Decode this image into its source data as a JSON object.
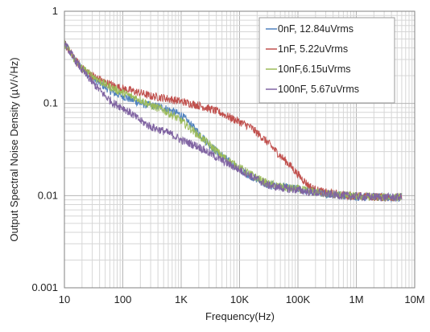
{
  "chart_data": {
    "type": "line",
    "xlabel": "Frequency(Hz)",
    "ylabel": "Output Spectral Noise Density (µV/√Hz)",
    "x_scale": "log",
    "y_scale": "log",
    "xlim": [
      10,
      10000000
    ],
    "ylim": [
      0.001,
      1
    ],
    "grid": true,
    "legend_position": "top-right",
    "x_ticks": [
      {
        "value": 10,
        "label": "10"
      },
      {
        "value": 100,
        "label": "100"
      },
      {
        "value": 1000,
        "label": "1K"
      },
      {
        "value": 10000,
        "label": "10K"
      },
      {
        "value": 100000,
        "label": "100K"
      },
      {
        "value": 1000000,
        "label": "1M"
      },
      {
        "value": 10000000,
        "label": "10M"
      }
    ],
    "y_ticks": [
      {
        "value": 1,
        "label": "1"
      },
      {
        "value": 0.1,
        "label": "0.1"
      },
      {
        "value": 0.01,
        "label": "0.01"
      },
      {
        "value": 0.001,
        "label": "0.001"
      }
    ],
    "series": [
      {
        "name": "0nF, 12.84uVrms",
        "color": "#4f81bd",
        "x": [
          10,
          15,
          20,
          30,
          50,
          70,
          100,
          200,
          300,
          500,
          1000,
          2000,
          3000,
          5000,
          10000,
          20000,
          30000,
          50000,
          70000,
          100000,
          150000,
          200000,
          300000,
          500000,
          1000000,
          2000000,
          3000000,
          6000000
        ],
        "y": [
          0.45,
          0.3,
          0.24,
          0.19,
          0.15,
          0.13,
          0.12,
          0.1,
          0.095,
          0.09,
          0.075,
          0.048,
          0.036,
          0.027,
          0.019,
          0.015,
          0.013,
          0.0125,
          0.012,
          0.0118,
          0.0112,
          0.011,
          0.0105,
          0.0102,
          0.0098,
          0.0097,
          0.0096,
          0.0096
        ]
      },
      {
        "name": "1nF, 5.22uVrms",
        "color": "#c0504d",
        "x": [
          10,
          15,
          20,
          30,
          50,
          70,
          100,
          200,
          300,
          500,
          1000,
          2000,
          3000,
          5000,
          7000,
          10000,
          15000,
          20000,
          30000,
          50000,
          70000,
          100000,
          150000,
          200000,
          300000,
          500000,
          1000000,
          2000000,
          3000000,
          6000000
        ],
        "y": [
          0.45,
          0.3,
          0.24,
          0.2,
          0.17,
          0.155,
          0.145,
          0.13,
          0.12,
          0.115,
          0.105,
          0.095,
          0.088,
          0.078,
          0.07,
          0.063,
          0.056,
          0.048,
          0.038,
          0.027,
          0.022,
          0.017,
          0.013,
          0.0115,
          0.0108,
          0.0103,
          0.0099,
          0.0097,
          0.0096,
          0.0096
        ]
      },
      {
        "name": "10nF,6.15uVrms",
        "color": "#9bbb59",
        "x": [
          10,
          15,
          20,
          30,
          50,
          70,
          100,
          200,
          300,
          500,
          1000,
          2000,
          3000,
          5000,
          10000,
          20000,
          30000,
          50000,
          70000,
          100000,
          150000,
          200000,
          300000,
          500000,
          1000000,
          2000000,
          3000000,
          6000000
        ],
        "y": [
          0.45,
          0.3,
          0.24,
          0.2,
          0.16,
          0.145,
          0.13,
          0.11,
          0.095,
          0.085,
          0.065,
          0.045,
          0.036,
          0.027,
          0.02,
          0.0155,
          0.0135,
          0.0125,
          0.012,
          0.0118,
          0.0112,
          0.011,
          0.0105,
          0.0102,
          0.0098,
          0.0097,
          0.0096,
          0.0096
        ]
      },
      {
        "name": "100nF, 5.67uVrms",
        "color": "#8064a2",
        "x": [
          10,
          15,
          20,
          30,
          50,
          70,
          100,
          150,
          200,
          300,
          500,
          700,
          1000,
          2000,
          3000,
          5000,
          10000,
          20000,
          30000,
          50000,
          70000,
          100000,
          150000,
          200000,
          300000,
          500000,
          1000000,
          2000000,
          3000000,
          6000000
        ],
        "y": [
          0.45,
          0.3,
          0.23,
          0.17,
          0.12,
          0.1,
          0.09,
          0.075,
          0.065,
          0.056,
          0.05,
          0.046,
          0.04,
          0.034,
          0.029,
          0.024,
          0.019,
          0.015,
          0.013,
          0.0122,
          0.0118,
          0.0115,
          0.011,
          0.0108,
          0.0104,
          0.0101,
          0.0098,
          0.0097,
          0.0096,
          0.0096
        ]
      }
    ]
  }
}
